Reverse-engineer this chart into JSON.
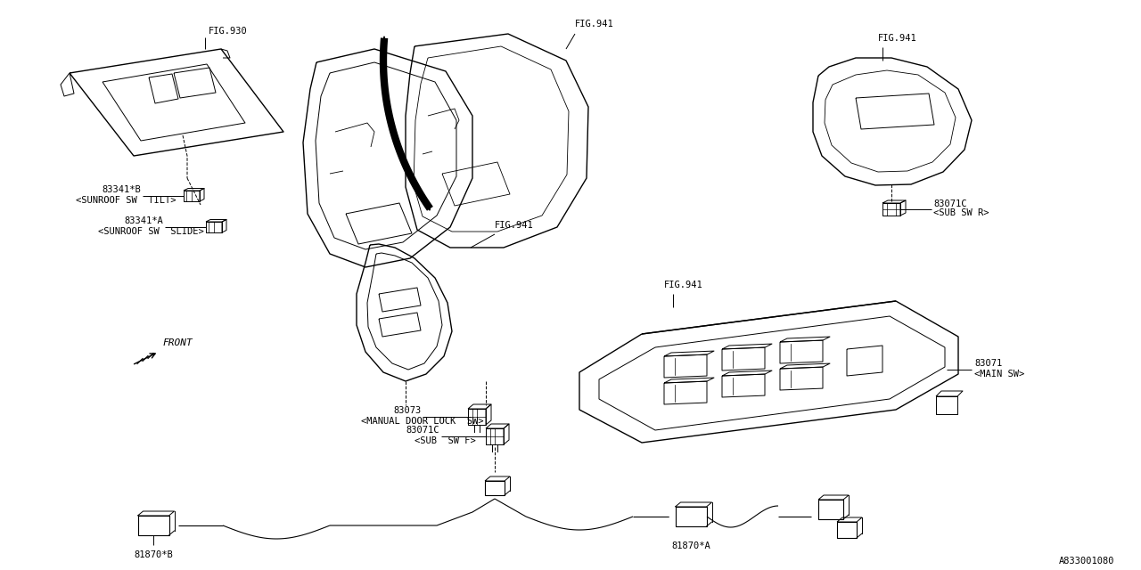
{
  "bg_color": "#ffffff",
  "line_color": "#000000",
  "font_family": "monospace",
  "fig_width": 12.8,
  "fig_height": 6.4,
  "labels": {
    "fig930": "FIG.930",
    "fig941_top": "FIG.941",
    "fig941_mid": "FIG.941",
    "fig941_bot": "FIG.941",
    "part_83341b": "83341*B",
    "part_83341a": "83341*A",
    "part_sunroof_tilt": "<SUNROOF SW  TILT>",
    "part_sunroof_slide": "<SUNROOF SW  SLIDE>",
    "part_83073": "83073",
    "part_83071c_f": "83071C",
    "part_sub_sw_f": "<SUB  SW F>",
    "part_83071c_r": "83071C",
    "part_sub_sw_r": "<SUB SW R>",
    "part_83071": "83071",
    "part_main_sw": "<MAIN SW>",
    "part_81870b": "81870*B",
    "part_81870a": "81870*A",
    "part_manual_door": "<MANUAL DOOR LOCK  SW>",
    "front_label": "FRONT",
    "diagram_id": "A833001080"
  }
}
